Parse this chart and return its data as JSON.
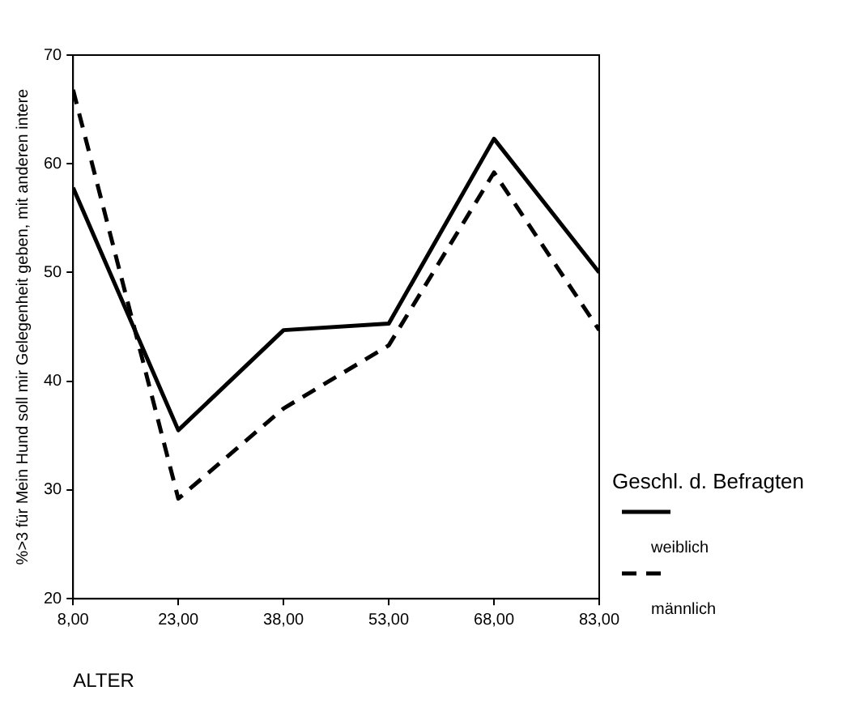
{
  "chart_data": {
    "type": "line",
    "xlabel": "ALTER",
    "ylabel": "%>3 für Mein Hund soll mir Gelegenheit geben, mit anderen intere",
    "legend_title": "Geschl. d. Befragten",
    "x": [
      8,
      23,
      38,
      53,
      68,
      83
    ],
    "series": [
      {
        "name": "weiblich",
        "color": "#000000",
        "line_style": "solid",
        "values": [
          57.8,
          35.5,
          44.7,
          45.3,
          62.3,
          50
        ]
      },
      {
        "name": "männlich",
        "color": "#000000",
        "line_style": "dashed",
        "values": [
          66.8,
          29.2,
          37.5,
          43.3,
          59.2,
          44.7
        ]
      }
    ],
    "xlim": [
      8,
      83
    ],
    "xticks": [
      {
        "value": 8,
        "label": "8,00"
      },
      {
        "value": 23,
        "label": "23,00"
      },
      {
        "value": 38,
        "label": "38,00"
      },
      {
        "value": 53,
        "label": "53,00"
      },
      {
        "value": 68,
        "label": "68,00"
      },
      {
        "value": 83,
        "label": "83,00"
      }
    ],
    "ylim": [
      20,
      70
    ],
    "yticks": [
      20,
      30,
      40,
      50,
      60,
      70
    ],
    "grid": false,
    "legend": "right",
    "marker": "none"
  }
}
